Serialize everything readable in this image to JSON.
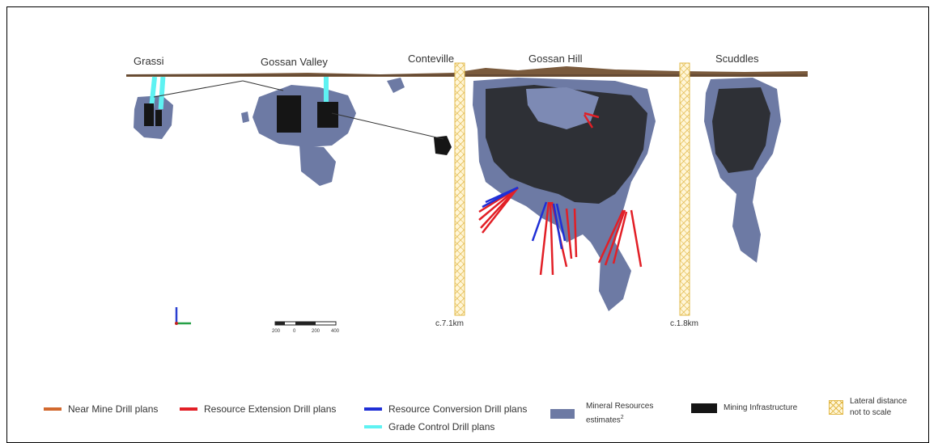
{
  "sites": {
    "grassi": "Grassi",
    "gossan_valley": "Gossan Valley",
    "conteville": "Conteville",
    "gossan_hill": "Gossan Hill",
    "scuddles": "Scuddles"
  },
  "distances": {
    "conteville_gap": "c.7.1km",
    "scuddles_gap": "c.1.8km"
  },
  "scale_bar": {
    "ticks": [
      "200",
      "0",
      "200",
      "400"
    ]
  },
  "legend": {
    "near_mine": "Near Mine Drill plans",
    "resource_extension": "Resource Extension Drill plans",
    "resource_conversion": "Resource Conversion Drill plans",
    "grade_control": "Grade Control Drill plans",
    "mineral_resources_line1": "Mineral Resources",
    "mineral_resources_line2": "estimates",
    "mineral_resources_sup": "2",
    "mining_infrastructure": "Mining Infrastructure",
    "lateral_line1": "Lateral distance",
    "lateral_line2": "not to scale"
  },
  "colors": {
    "near_mine": "#d2692e",
    "resource_extension": "#e21f26",
    "resource_conversion": "#1f2fd6",
    "grade_control": "#5ef2f2",
    "mineral_resources": "#6d7aa4",
    "mining_infrastructure": "#151515",
    "lateral": "#f2d36b",
    "surface": "#7a5a3c"
  }
}
